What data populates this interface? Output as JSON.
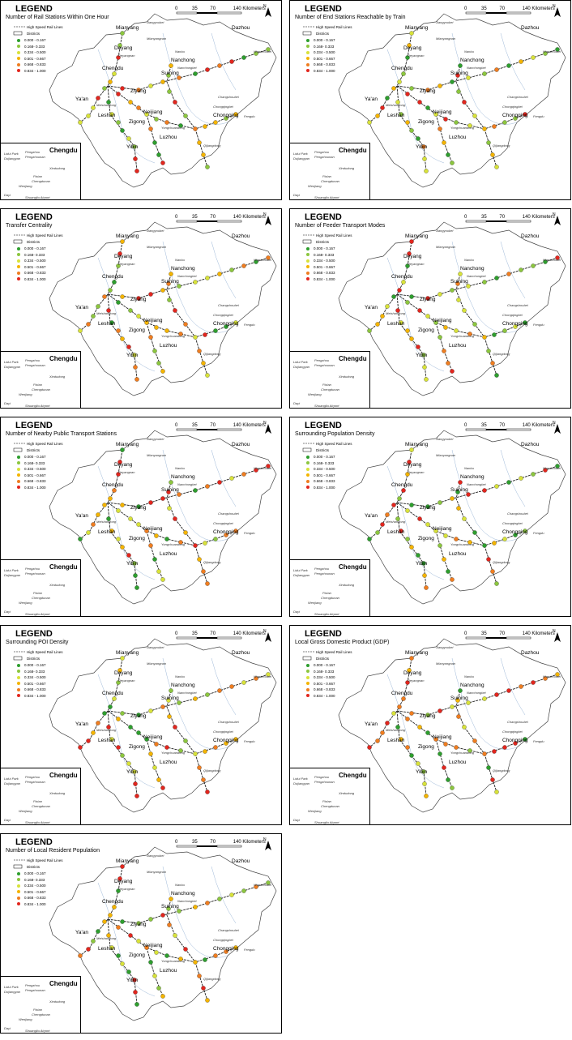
{
  "legend": {
    "heading": "LEGEND",
    "rail_label": "High Speed Rail Lines",
    "districts_label": "Districts",
    "classes": [
      {
        "range": "0.000 - 0.167",
        "color": "#2e9e2e"
      },
      {
        "range": "0.168- 0.333",
        "color": "#8cc63f"
      },
      {
        "range": "0.334 - 0.500",
        "color": "#d8e23a"
      },
      {
        "range": "0.501 - 0.667",
        "color": "#f4b400"
      },
      {
        "range": "0.668 - 0.833",
        "color": "#ef7d20"
      },
      {
        "range": "0.834 - 1.000",
        "color": "#e2261e"
      }
    ]
  },
  "scale_bar": {
    "ticks": [
      "0",
      "35",
      "70",
      "140 Kilometers"
    ]
  },
  "north_label": "N",
  "inset_title": "Chengdu",
  "cities": {
    "mianyang": "Mianyang",
    "deyang": "Deyang",
    "dazhou": "Dazhou",
    "nanchong": "Nanchong",
    "chengdu": "Chengdu",
    "suining": "Suining",
    "ziyang": "Ziyang",
    "yaan": "Ya'an",
    "leshan": "Leshan",
    "neijiang": "Neijiang",
    "zigong": "Zigong",
    "chongqing": "Chongqing",
    "luzhou": "Luzhou",
    "yibin": "Yibin"
  },
  "small_labels": {
    "jiangyoubei": "Jiangyoubei",
    "mianyangnan": "Mianyangnan",
    "deyangnan": "Deyangnan",
    "nanbu": "Nanbu",
    "nanchongbei": "Nanchongbei",
    "wanzhoubei": "Wanzhoubei",
    "meishandong": "Meishandong",
    "chongqingbei": "Chongqingbei",
    "yongchuan": "Yongchuandong",
    "qijiang": "Qijiangdong",
    "fengdu": "Fengdu",
    "changshou": "Changshoubei"
  },
  "inset_labels": {
    "lidu": "Lidui Park",
    "dujiangyan": "Dujiangyan",
    "pengzhou": "Pengzhou",
    "pengzhounan": "Pengzhounan",
    "xindu": "Xindudong",
    "pixian": "Pixian",
    "chengdunan": "Chengdunan",
    "wenjiang": "Wenjiang",
    "dayi": "Dayi",
    "shuangliu": "Shuangliu Airport"
  },
  "panels": [
    {
      "title": "Number of Rail Stations Within One Hour",
      "seed": 3
    },
    {
      "title": "Number of End Stations Reachable by Train",
      "seed": 7
    },
    {
      "title": "Transfer Centrality",
      "seed": 11
    },
    {
      "title": "Number of Feeder Transport Modes",
      "seed": 17
    },
    {
      "title": "Number of Nearby Public Transport Stations",
      "seed": 23
    },
    {
      "title": "Surrounding Population Density",
      "seed": 29
    },
    {
      "title": "Surrounding POI Density",
      "seed": 31
    },
    {
      "title": "Local Gross Domestic Product (GDP)",
      "seed": 37
    },
    {
      "title": "Number of Local Resident Population",
      "seed": 41
    }
  ]
}
